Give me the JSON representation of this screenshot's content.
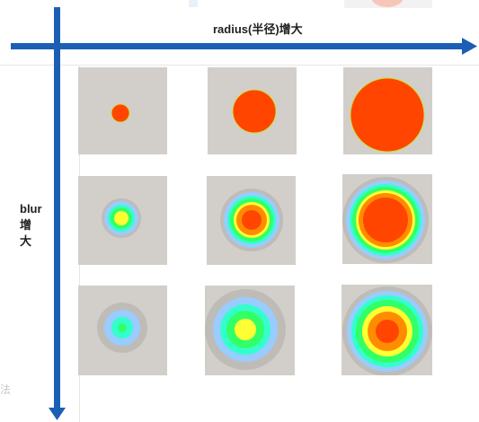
{
  "diagram": {
    "x_axis_label": "radius(半径)增大",
    "y_axis_label_line1": "blur",
    "y_axis_label_line2": "增",
    "y_axis_label_line3": "大",
    "fragment_text": "法"
  },
  "colors": {
    "arrow_blue": "#1a5fb4",
    "cell_background": "#d2cfca",
    "core": "#ff4500",
    "orange": "#ff8c00",
    "yellow": "#ffff33",
    "green": "#33ff66",
    "cyan": "#33ffcc",
    "light_blue": "#99ccff",
    "halo": "#bfbcb8"
  },
  "grid": {
    "rows": [
      {
        "name": "blur-low",
        "cells": [
          "radius-small",
          "radius-medium",
          "radius-large"
        ]
      },
      {
        "name": "blur-mid",
        "cells": [
          "radius-small",
          "radius-medium",
          "radius-large"
        ]
      },
      {
        "name": "blur-high",
        "cells": [
          "radius-small",
          "radius-medium",
          "radius-large"
        ]
      }
    ]
  }
}
